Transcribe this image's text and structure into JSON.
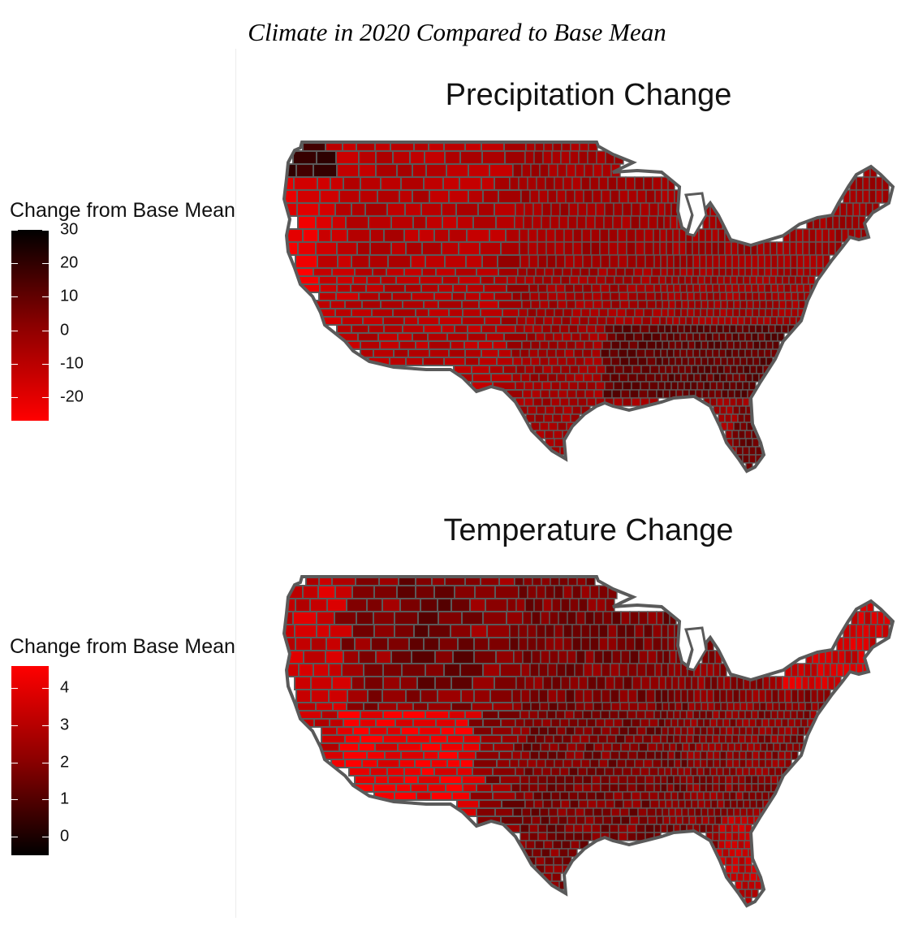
{
  "figure_title": "Climate in 2020 Compared to Base Mean",
  "chart_data": [
    {
      "type": "heatmap",
      "title": "Precipitation Change",
      "region": "contiguous United States counties",
      "legend": {
        "title": "Change from Base Mean",
        "placement": "left",
        "range": [
          -27,
          30
        ],
        "ticks": [
          30,
          20,
          10,
          0,
          -10,
          -20
        ],
        "tick_labels": [
          "30",
          "20",
          "10",
          "0",
          "-10",
          "-20"
        ],
        "color_high": "#000000",
        "color_mid": "#8b0000",
        "color_low": "#ff0000"
      }
    },
    {
      "type": "heatmap",
      "title": "Temperature Change",
      "region": "contiguous United States counties",
      "legend": {
        "title": "Change from Base Mean",
        "placement": "left",
        "range": [
          -0.5,
          4.6
        ],
        "ticks": [
          4,
          3,
          2,
          1,
          0
        ],
        "tick_labels": [
          "4",
          "3",
          "2",
          "1",
          "0"
        ],
        "color_high": "#ff0000",
        "color_mid": "#8b0000",
        "color_low": "#000000"
      }
    }
  ],
  "border_color": "#5a5a5a"
}
